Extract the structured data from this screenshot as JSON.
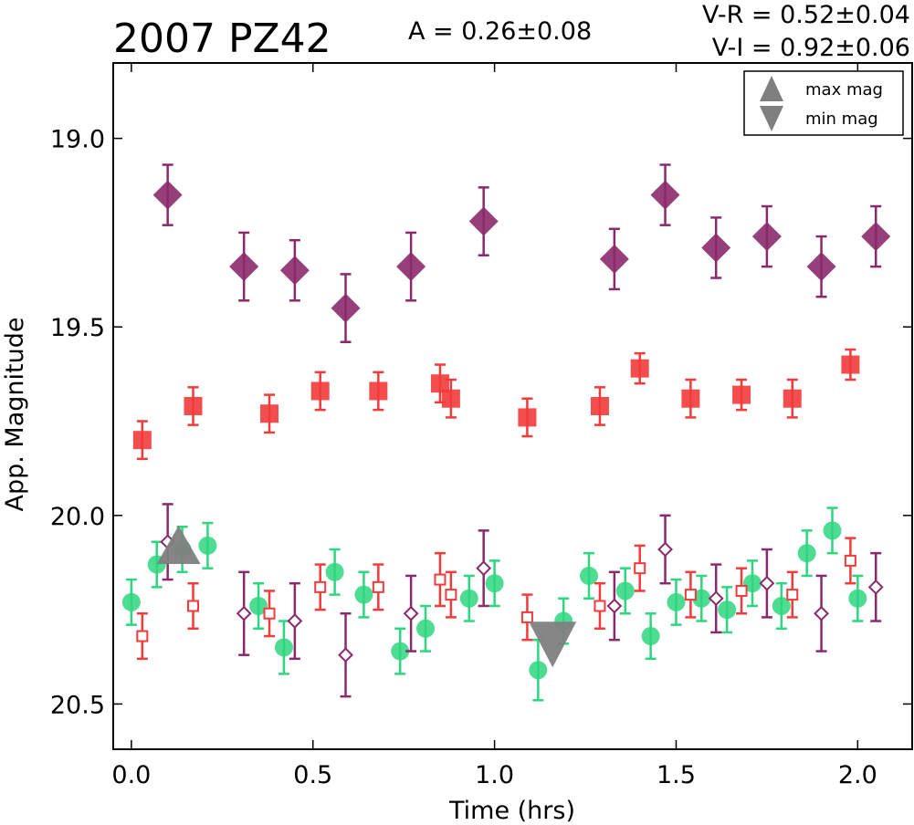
{
  "chart_data": {
    "type": "scatter",
    "title": "2007 PZ42",
    "annotations": {
      "amplitude": "A  = 0.26±0.08",
      "v_r": "V-R = 0.52±0.04",
      "v_i": "V-I  = 0.92±0.06"
    },
    "xlabel": "Time (hrs)",
    "ylabel": "App. Magnitude",
    "xlim": [
      -0.05,
      2.15
    ],
    "ylim": [
      20.62,
      18.8
    ],
    "y_inverted": true,
    "grid": false,
    "xticks": [
      "0.0",
      "0.5",
      "1.0",
      "1.5",
      "2.0"
    ],
    "yticks": [
      "19.0",
      "19.5",
      "20.0",
      "20.5"
    ],
    "legend": {
      "position": "top-right",
      "entries": [
        "max mag",
        "min mag"
      ]
    },
    "series": [
      {
        "key": "I_shifted",
        "marker": "filled-diamond",
        "color": "#8b2a6b",
        "x": [
          0.1,
          0.31,
          0.45,
          0.59,
          0.77,
          0.97,
          1.33,
          1.47,
          1.61,
          1.75,
          1.9,
          2.05
        ],
        "y": [
          19.15,
          19.34,
          19.35,
          19.45,
          19.34,
          19.22,
          19.32,
          19.15,
          19.29,
          19.26,
          19.34,
          19.26
        ],
        "err": [
          0.08,
          0.09,
          0.08,
          0.09,
          0.09,
          0.09,
          0.08,
          0.08,
          0.08,
          0.08,
          0.08,
          0.08
        ]
      },
      {
        "key": "R_shifted",
        "marker": "filled-square",
        "color": "#f23b3b",
        "x": [
          0.03,
          0.17,
          0.38,
          0.52,
          0.68,
          0.85,
          0.88,
          1.09,
          1.29,
          1.4,
          1.54,
          1.68,
          1.82,
          1.98
        ],
        "y": [
          19.8,
          19.71,
          19.73,
          19.67,
          19.67,
          19.65,
          19.69,
          19.74,
          19.71,
          19.61,
          19.69,
          19.68,
          19.69,
          19.6
        ],
        "err": [
          0.05,
          0.05,
          0.05,
          0.05,
          0.05,
          0.05,
          0.05,
          0.05,
          0.05,
          0.04,
          0.05,
          0.04,
          0.05,
          0.04
        ]
      },
      {
        "key": "V",
        "marker": "filled-circle",
        "color": "#2ed67f",
        "x": [
          0.0,
          0.07,
          0.14,
          0.21,
          0.35,
          0.42,
          0.56,
          0.64,
          0.74,
          0.81,
          0.93,
          1.0,
          1.12,
          1.19,
          1.26,
          1.36,
          1.43,
          1.5,
          1.57,
          1.64,
          1.71,
          1.79,
          1.86,
          1.93,
          2.0
        ],
        "y": [
          20.23,
          20.13,
          20.09,
          20.08,
          20.24,
          20.35,
          20.15,
          20.21,
          20.36,
          20.3,
          20.22,
          20.18,
          20.41,
          20.28,
          20.16,
          20.2,
          20.32,
          20.23,
          20.22,
          20.25,
          20.18,
          20.24,
          20.1,
          20.04,
          20.22
        ],
        "err": [
          0.06,
          0.06,
          0.06,
          0.06,
          0.06,
          0.07,
          0.06,
          0.06,
          0.06,
          0.06,
          0.06,
          0.06,
          0.08,
          0.06,
          0.06,
          0.06,
          0.06,
          0.06,
          0.06,
          0.06,
          0.06,
          0.06,
          0.06,
          0.06,
          0.06
        ]
      },
      {
        "key": "R",
        "marker": "open-square",
        "color": "#f23b3b",
        "x": [
          0.03,
          0.17,
          0.38,
          0.52,
          0.68,
          0.85,
          0.88,
          1.09,
          1.29,
          1.4,
          1.54,
          1.68,
          1.82,
          1.98
        ],
        "y": [
          20.32,
          20.24,
          20.26,
          20.19,
          20.19,
          20.17,
          20.21,
          20.27,
          20.24,
          20.14,
          20.21,
          20.2,
          20.21,
          20.12
        ],
        "err": [
          0.06,
          0.06,
          0.06,
          0.06,
          0.06,
          0.07,
          0.06,
          0.06,
          0.06,
          0.06,
          0.06,
          0.06,
          0.06,
          0.06
        ]
      },
      {
        "key": "I",
        "marker": "open-diamond",
        "color": "#8b2a6b",
        "x": [
          0.1,
          0.31,
          0.45,
          0.59,
          0.77,
          0.97,
          1.33,
          1.47,
          1.61,
          1.75,
          1.9,
          2.05
        ],
        "y": [
          20.07,
          20.26,
          20.28,
          20.37,
          20.26,
          20.14,
          20.24,
          20.09,
          20.22,
          20.18,
          20.26,
          20.19
        ],
        "err": [
          0.1,
          0.11,
          0.1,
          0.11,
          0.1,
          0.1,
          0.09,
          0.09,
          0.09,
          0.09,
          0.1,
          0.09
        ]
      },
      {
        "key": "max_mag",
        "marker": "triangle-up",
        "color": "#7f7f7f",
        "x": [
          0.13
        ],
        "y": [
          20.09
        ],
        "err": [
          0
        ]
      },
      {
        "key": "min_mag",
        "marker": "triangle-down",
        "color": "#7f7f7f",
        "x": [
          1.16
        ],
        "y": [
          20.34
        ],
        "err": [
          0
        ]
      }
    ]
  }
}
